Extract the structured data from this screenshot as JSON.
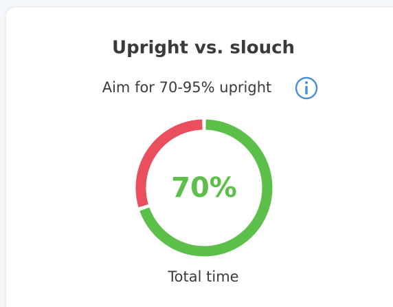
{
  "chart_data": {
    "type": "donut",
    "title": "Upright vs. slouch",
    "subtitle": "Aim for 70-95% upright",
    "caption": "Total time",
    "values": [
      70,
      30
    ],
    "value_labels": [
      "70%",
      null
    ],
    "colors": [
      "#5cbf4a",
      "#ea4f5d"
    ]
  }
}
